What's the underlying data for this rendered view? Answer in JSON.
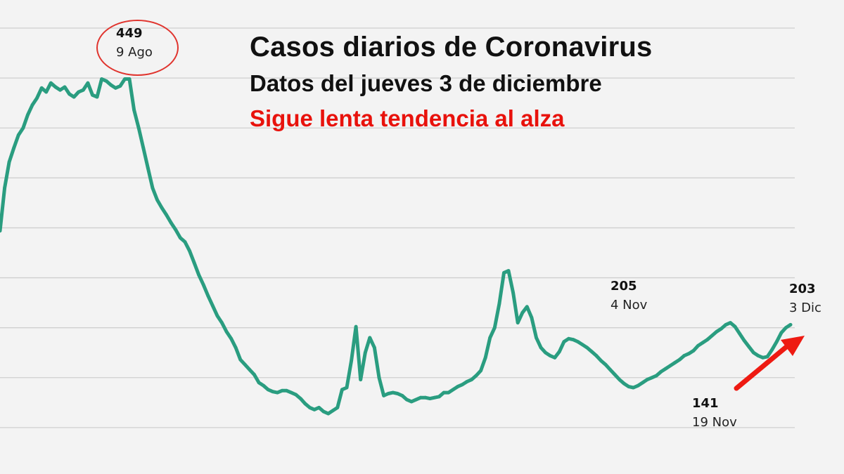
{
  "header": {
    "title": "Casos diarios de Coronavirus",
    "subtitle": "Datos del jueves 3 de diciembre",
    "tagline": "Sigue lenta tendencia al alza"
  },
  "colors": {
    "line": "#2a9d80",
    "tagline": "#e8120c",
    "circle": "#e0342e",
    "arrow": "#ee1a12",
    "grid": "#cfcfcf",
    "background": "#f3f3f3"
  },
  "chart_data": {
    "type": "line",
    "title": "Casos diarios de Coronavirus",
    "ylim": [
      50,
      500
    ],
    "grid": true,
    "series": [
      {
        "values": [
          297,
          340,
          366,
          380,
          393,
          400,
          413,
          423,
          430,
          440,
          436,
          445,
          441,
          438,
          441,
          434,
          431,
          436,
          438,
          445,
          433,
          431,
          449,
          447,
          443,
          440,
          442,
          449,
          449,
          418,
          400,
          380,
          360,
          340,
          328,
          320,
          313,
          305,
          298,
          290,
          286,
          277,
          265,
          253,
          243,
          232,
          222,
          212,
          205,
          196,
          189,
          180,
          168,
          163,
          158,
          153,
          145,
          142,
          138,
          136,
          135,
          137,
          137,
          135,
          133,
          129,
          124,
          120,
          118,
          120,
          116,
          114,
          117,
          120,
          138,
          140,
          167,
          201,
          148,
          175,
          190,
          180,
          150,
          132,
          134,
          135,
          134,
          132,
          128,
          126,
          128,
          130,
          130,
          129,
          130,
          131,
          135,
          135,
          138,
          141,
          143,
          146,
          148,
          152,
          157,
          170,
          190,
          200,
          224,
          255,
          257,
          235,
          205,
          215,
          221,
          210,
          190,
          180,
          175,
          172,
          170,
          176,
          186,
          189,
          188,
          186,
          183,
          180,
          176,
          172,
          167,
          163,
          158,
          153,
          148,
          144,
          141,
          140,
          142,
          145,
          148,
          150,
          152,
          156,
          159,
          162,
          165,
          168,
          172,
          174,
          177,
          182,
          185,
          188,
          192,
          196,
          199,
          203,
          205,
          201,
          194,
          187,
          181,
          175,
          172,
          170,
          171,
          178,
          186,
          195,
          200,
          203
        ]
      }
    ],
    "annotations": [
      {
        "value": "449",
        "date": "9 Ago"
      },
      {
        "value": "205",
        "date": "4 Nov"
      },
      {
        "value": "141",
        "date": "19 Nov"
      },
      {
        "value": "203",
        "date": "3 Dic"
      }
    ]
  }
}
